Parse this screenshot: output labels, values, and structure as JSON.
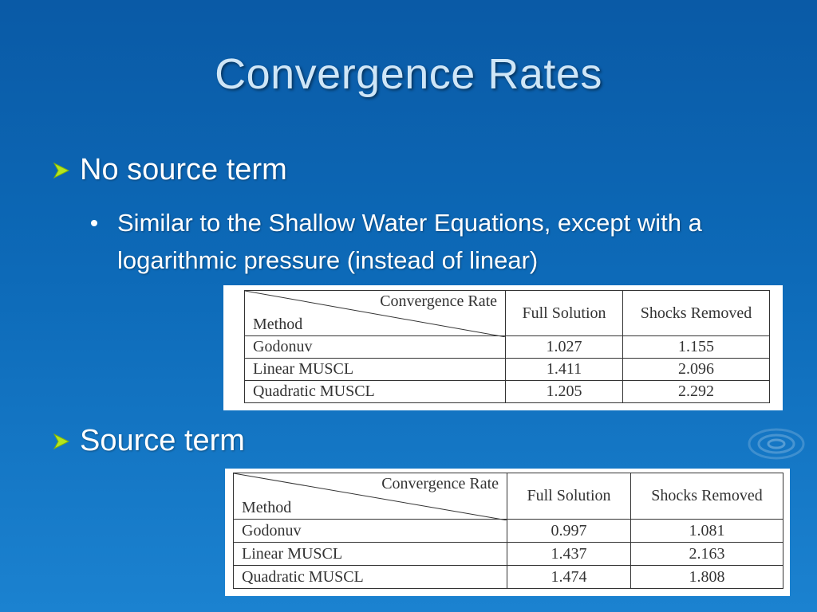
{
  "slide": {
    "title": "Convergence Rates",
    "bullets": [
      {
        "text": "No source term"
      },
      {
        "text": "Source term"
      }
    ],
    "sub_bullet": "Similar to the Shallow Water Equations, except with a logarithmic pressure (instead of linear)"
  },
  "table1": {
    "corner_top": "Convergence Rate",
    "corner_bottom": "Method",
    "columns": [
      "Full Solution",
      "Shocks Removed"
    ],
    "rows": [
      {
        "method": "Godonuv",
        "full": "1.027",
        "shocks": "1.155"
      },
      {
        "method": "Linear MUSCL",
        "full": "1.411",
        "shocks": "2.096"
      },
      {
        "method": "Quadratic MUSCL",
        "full": "1.205",
        "shocks": "2.292"
      }
    ]
  },
  "table2": {
    "corner_top": "Convergence Rate",
    "corner_bottom": "Method",
    "columns": [
      "Full Solution",
      "Shocks Removed"
    ],
    "rows": [
      {
        "method": "Godonuv",
        "full": "0.997",
        "shocks": "1.081"
      },
      {
        "method": "Linear MUSCL",
        "full": "1.437",
        "shocks": "2.163"
      },
      {
        "method": "Quadratic MUSCL",
        "full": "1.474",
        "shocks": "1.808"
      }
    ]
  },
  "icons": {
    "bullet_arrow": "arrow-bullet-icon",
    "ripple": "water-ripple-icon"
  },
  "colors": {
    "background": "#0d6ab8",
    "title": "#cfe6f7",
    "text": "#ffffff",
    "arrow": "#b5e61d"
  }
}
